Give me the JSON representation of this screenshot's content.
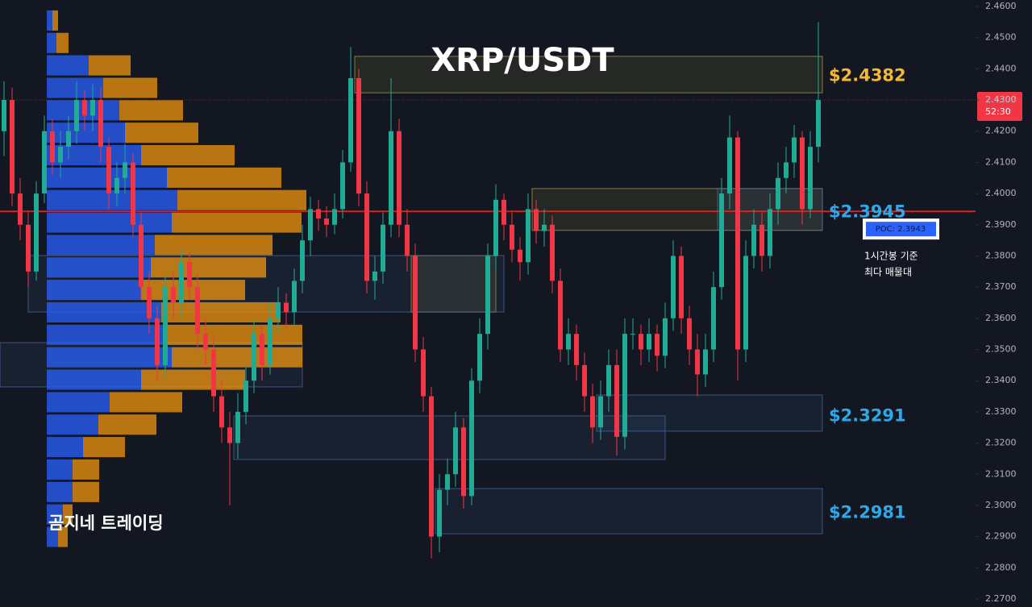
{
  "chart_data": {
    "type": "candlestick",
    "title": "XRP/USDT",
    "watermark": "곰지네 트레이딩",
    "ylim": [
      2.27,
      2.46
    ],
    "yticks": [
      {
        "value": 2.27,
        "label": "2.2700"
      },
      {
        "value": 2.28,
        "label": "2.2800"
      },
      {
        "value": 2.29,
        "label": "2.2900"
      },
      {
        "value": 2.3,
        "label": "2.3000"
      },
      {
        "value": 2.31,
        "label": "2.3100"
      },
      {
        "value": 2.32,
        "label": "2.3200"
      },
      {
        "value": 2.33,
        "label": "2.3300"
      },
      {
        "value": 2.34,
        "label": "2.3400"
      },
      {
        "value": 2.35,
        "label": "2.3500"
      },
      {
        "value": 2.36,
        "label": "2.3600"
      },
      {
        "value": 2.37,
        "label": "2.3700"
      },
      {
        "value": 2.38,
        "label": "2.3800"
      },
      {
        "value": 2.39,
        "label": "2.3900"
      },
      {
        "value": 2.4,
        "label": "2.4000"
      },
      {
        "value": 2.41,
        "label": "2.4100"
      },
      {
        "value": 2.42,
        "label": "2.4200"
      },
      {
        "value": 2.43,
        "label": "2.4300"
      },
      {
        "value": 2.44,
        "label": "2.4400"
      },
      {
        "value": 2.45,
        "label": "2.4500"
      },
      {
        "value": 2.46,
        "label": "2.4600"
      }
    ],
    "up_color": "#22ab94",
    "down_color": "#f23645",
    "ohlc": [
      [
        2.42,
        2.436,
        2.412,
        2.43
      ],
      [
        2.43,
        2.434,
        2.396,
        2.4
      ],
      [
        2.4,
        2.405,
        2.385,
        2.39
      ],
      [
        2.39,
        2.394,
        2.37,
        2.375
      ],
      [
        2.375,
        2.404,
        2.372,
        2.4
      ],
      [
        2.4,
        2.425,
        2.397,
        2.42
      ],
      [
        2.42,
        2.424,
        2.406,
        2.41
      ],
      [
        2.41,
        2.42,
        2.405,
        2.415
      ],
      [
        2.415,
        2.425,
        2.411,
        2.42
      ],
      [
        2.42,
        2.436,
        2.416,
        2.43
      ],
      [
        2.43,
        2.433,
        2.42,
        2.425
      ],
      [
        2.425,
        2.435,
        2.42,
        2.43
      ],
      [
        2.43,
        2.434,
        2.41,
        2.415
      ],
      [
        2.415,
        2.418,
        2.395,
        2.4
      ],
      [
        2.4,
        2.41,
        2.396,
        2.405
      ],
      [
        2.405,
        2.416,
        2.4,
        2.41
      ],
      [
        2.41,
        2.413,
        2.386,
        2.39
      ],
      [
        2.39,
        2.394,
        2.366,
        2.37
      ],
      [
        2.37,
        2.375,
        2.355,
        2.36
      ],
      [
        2.36,
        2.364,
        2.34,
        2.345
      ],
      [
        2.345,
        2.374,
        2.341,
        2.37
      ],
      [
        2.37,
        2.375,
        2.36,
        2.365
      ],
      [
        2.365,
        2.382,
        2.36,
        2.378
      ],
      [
        2.378,
        2.381,
        2.366,
        2.37
      ],
      [
        2.37,
        2.374,
        2.35,
        2.355
      ],
      [
        2.355,
        2.36,
        2.345,
        2.35
      ],
      [
        2.35,
        2.354,
        2.33,
        2.335
      ],
      [
        2.335,
        2.34,
        2.32,
        2.325
      ],
      [
        2.325,
        2.33,
        2.3,
        2.32
      ],
      [
        2.32,
        2.336,
        2.315,
        2.33
      ],
      [
        2.33,
        2.345,
        2.326,
        2.34
      ],
      [
        2.34,
        2.36,
        2.336,
        2.355
      ],
      [
        2.355,
        2.358,
        2.34,
        2.345
      ],
      [
        2.345,
        2.365,
        2.342,
        2.36
      ],
      [
        2.36,
        2.37,
        2.355,
        2.365
      ],
      [
        2.365,
        2.368,
        2.357,
        2.362
      ],
      [
        2.362,
        2.376,
        2.358,
        2.372
      ],
      [
        2.372,
        2.39,
        2.368,
        2.385
      ],
      [
        2.385,
        2.399,
        2.38,
        2.395
      ],
      [
        2.395,
        2.398,
        2.388,
        2.392
      ],
      [
        2.392,
        2.396,
        2.386,
        2.39
      ],
      [
        2.39,
        2.4,
        2.387,
        2.395
      ],
      [
        2.395,
        2.414,
        2.392,
        2.41
      ],
      [
        2.41,
        2.447,
        2.407,
        2.437
      ],
      [
        2.437,
        2.44,
        2.396,
        2.4
      ],
      [
        2.4,
        2.404,
        2.368,
        2.372
      ],
      [
        2.372,
        2.38,
        2.366,
        2.375
      ],
      [
        2.375,
        2.394,
        2.371,
        2.39
      ],
      [
        2.39,
        2.437,
        2.386,
        2.42
      ],
      [
        2.42,
        2.424,
        2.386,
        2.39
      ],
      [
        2.39,
        2.395,
        2.375,
        2.38
      ],
      [
        2.38,
        2.384,
        2.346,
        2.35
      ],
      [
        2.35,
        2.354,
        2.33,
        2.335
      ],
      [
        2.335,
        2.338,
        2.283,
        2.29
      ],
      [
        2.29,
        2.31,
        2.285,
        2.305
      ],
      [
        2.305,
        2.315,
        2.3,
        2.31
      ],
      [
        2.31,
        2.33,
        2.306,
        2.325
      ],
      [
        2.325,
        2.328,
        2.299,
        2.303
      ],
      [
        2.303,
        2.344,
        2.3,
        2.34
      ],
      [
        2.34,
        2.36,
        2.336,
        2.355
      ],
      [
        2.355,
        2.384,
        2.35,
        2.38
      ],
      [
        2.38,
        2.403,
        2.376,
        2.398
      ],
      [
        2.398,
        2.4,
        2.385,
        2.39
      ],
      [
        2.39,
        2.394,
        2.378,
        2.382
      ],
      [
        2.382,
        2.386,
        2.372,
        2.378
      ],
      [
        2.378,
        2.4,
        2.374,
        2.395
      ],
      [
        2.395,
        2.398,
        2.384,
        2.388
      ],
      [
        2.388,
        2.395,
        2.383,
        2.39
      ],
      [
        2.39,
        2.393,
        2.368,
        2.372
      ],
      [
        2.372,
        2.376,
        2.346,
        2.35
      ],
      [
        2.35,
        2.36,
        2.345,
        2.355
      ],
      [
        2.355,
        2.358,
        2.34,
        2.345
      ],
      [
        2.345,
        2.349,
        2.33,
        2.335
      ],
      [
        2.335,
        2.339,
        2.32,
        2.325
      ],
      [
        2.325,
        2.34,
        2.321,
        2.335
      ],
      [
        2.335,
        2.35,
        2.33,
        2.345
      ],
      [
        2.345,
        2.35,
        2.316,
        2.322
      ],
      [
        2.322,
        2.36,
        2.318,
        2.355
      ],
      [
        2.355,
        2.36,
        2.35,
        2.355
      ],
      [
        2.355,
        2.358,
        2.345,
        2.35
      ],
      [
        2.35,
        2.36,
        2.346,
        2.355
      ],
      [
        2.355,
        2.358,
        2.343,
        2.348
      ],
      [
        2.348,
        2.365,
        2.344,
        2.36
      ],
      [
        2.36,
        2.385,
        2.356,
        2.38
      ],
      [
        2.38,
        2.383,
        2.355,
        2.36
      ],
      [
        2.36,
        2.364,
        2.345,
        2.35
      ],
      [
        2.35,
        2.355,
        2.335,
        2.342
      ],
      [
        2.342,
        2.355,
        2.338,
        2.35
      ],
      [
        2.35,
        2.375,
        2.346,
        2.37
      ],
      [
        2.37,
        2.405,
        2.366,
        2.4
      ],
      [
        2.4,
        2.425,
        2.395,
        2.418
      ],
      [
        2.418,
        2.42,
        2.34,
        2.35
      ],
      [
        2.35,
        2.385,
        2.346,
        2.38
      ],
      [
        2.38,
        2.395,
        2.376,
        2.39
      ],
      [
        2.39,
        2.394,
        2.375,
        2.38
      ],
      [
        2.38,
        2.4,
        2.376,
        2.395
      ],
      [
        2.395,
        2.41,
        2.39,
        2.405
      ],
      [
        2.405,
        2.415,
        2.4,
        2.41
      ],
      [
        2.41,
        2.422,
        2.405,
        2.418
      ],
      [
        2.418,
        2.42,
        2.39,
        2.395
      ],
      [
        2.395,
        2.42,
        2.392,
        2.415
      ],
      [
        2.415,
        2.455,
        2.41,
        2.43
      ]
    ],
    "volume_profile": {
      "buy_color": "#2962ff",
      "sell_color": "#f0960e",
      "levels": [
        2.4555,
        2.4483,
        2.4411,
        2.4339,
        2.4267,
        2.4195,
        2.4123,
        2.4051,
        2.3979,
        2.3907,
        2.3835,
        2.3763,
        2.3691,
        2.3619,
        2.3547,
        2.3475,
        2.3403,
        2.3331,
        2.3259,
        2.3187,
        2.3115,
        2.3043,
        2.2971,
        2.2899
      ],
      "buy": [
        7,
        12,
        52,
        70,
        90,
        97,
        117,
        149,
        162,
        155,
        134,
        129,
        117,
        142,
        149,
        155,
        117,
        78,
        64,
        45,
        32,
        32,
        20,
        14
      ],
      "sell": [
        7,
        15,
        52,
        67,
        79,
        91,
        116,
        142,
        160,
        161,
        146,
        143,
        129,
        148,
        168,
        162,
        129,
        90,
        72,
        52,
        33,
        33,
        12,
        12
      ]
    },
    "zones": [
      {
        "from": 43.5,
        "to": 101.5,
        "low": 2.4323,
        "high": 2.444,
        "color": "#b5a642"
      },
      {
        "from": 65.5,
        "to": 101.5,
        "low": 2.3882,
        "high": 2.4016,
        "color": "#b5a642"
      },
      {
        "from": 88.5,
        "to": 101.5,
        "low": 2.3882,
        "high": 2.4016,
        "color": "#4a6fa5"
      },
      {
        "from": 50.5,
        "to": 61,
        "low": 2.362,
        "high": 2.3801,
        "color": "#b5a642"
      },
      {
        "from": 3,
        "to": 62,
        "low": 2.362,
        "high": 2.3801,
        "color": "#4a6fa5"
      },
      {
        "from": -0.5,
        "to": 37,
        "low": 2.338,
        "high": 2.3522,
        "color": "#4a6fa5"
      },
      {
        "from": 28.5,
        "to": 82,
        "low": 2.3147,
        "high": 2.3287,
        "color": "#4a6fa5"
      },
      {
        "from": 73.5,
        "to": 101.5,
        "low": 2.3238,
        "high": 2.3354,
        "color": "#4a6fa5"
      },
      {
        "from": 53.5,
        "to": 101.5,
        "low": 2.2909,
        "high": 2.3054,
        "color": "#4a6fa5"
      }
    ],
    "annotations": [
      {
        "label": "$2.4382",
        "value": 2.4382,
        "color": "#f5b82e"
      },
      {
        "label": "$2.3945",
        "value": 2.3945,
        "color": "#2ea8e6"
      },
      {
        "label": "$2.3291",
        "value": 2.3291,
        "color": "#2ea8e6"
      },
      {
        "label": "$2.2981",
        "value": 2.2981,
        "color": "#2ea8e6"
      }
    ],
    "poc": {
      "label": "POC: 2.3943",
      "value": 2.3943,
      "color": "#ff2020",
      "note": [
        "1시간봉 기준",
        "최다 매물대"
      ]
    },
    "last_price": {
      "value": 2.43,
      "label": "2.4300",
      "countdown": "52:30",
      "color": "#f23645"
    }
  }
}
